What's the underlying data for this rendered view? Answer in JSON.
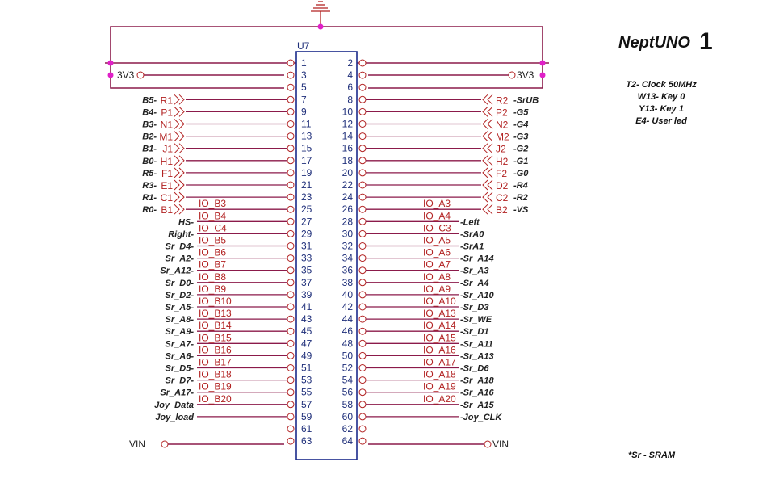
{
  "brand": {
    "name": "NeptUNO",
    "version": "1"
  },
  "notes": [
    "T2- Clock 50MHz",
    "W13- Key 0",
    "Y13- Key 1",
    "E4- User led"
  ],
  "footnote": "*Sr - SRAM",
  "component": {
    "ref": "U7"
  },
  "power": {
    "v33_left": "3V3",
    "v33_right": "3V3",
    "vin_left": "VIN",
    "vin_right": "VIN"
  },
  "pins": {
    "left": [
      "1",
      "3",
      "5",
      "7",
      "9",
      "11",
      "13",
      "15",
      "17",
      "19",
      "21",
      "23",
      "25",
      "27",
      "29",
      "31",
      "33",
      "35",
      "37",
      "39",
      "41",
      "43",
      "45",
      "47",
      "49",
      "51",
      "53",
      "55",
      "57",
      "59",
      "61",
      "63"
    ],
    "right": [
      "2",
      "4",
      "6",
      "8",
      "10",
      "12",
      "14",
      "16",
      "18",
      "20",
      "22",
      "24",
      "26",
      "28",
      "30",
      "32",
      "34",
      "36",
      "38",
      "40",
      "42",
      "44",
      "46",
      "48",
      "50",
      "52",
      "54",
      "56",
      "58",
      "60",
      "62",
      "64"
    ]
  },
  "left_fpga": [
    {
      "row": 3,
      "sig": "B5-",
      "pin": "R1"
    },
    {
      "row": 4,
      "sig": "B4-",
      "pin": "P1"
    },
    {
      "row": 5,
      "sig": "B3-",
      "pin": "N1"
    },
    {
      "row": 6,
      "sig": "B2-",
      "pin": "M1"
    },
    {
      "row": 7,
      "sig": "B1-",
      "pin": "J1"
    },
    {
      "row": 8,
      "sig": "B0-",
      "pin": "H1"
    },
    {
      "row": 9,
      "sig": "R5-",
      "pin": "F1"
    },
    {
      "row": 10,
      "sig": "R3-",
      "pin": "E1"
    },
    {
      "row": 11,
      "sig": "R1-",
      "pin": "C1"
    },
    {
      "row": 12,
      "sig": "R0-",
      "pin": "B1"
    }
  ],
  "right_fpga": [
    {
      "row": 3,
      "pin": "R2",
      "sig": "-SrUB"
    },
    {
      "row": 4,
      "pin": "P2",
      "sig": "-G5"
    },
    {
      "row": 5,
      "pin": "N2",
      "sig": "-G4"
    },
    {
      "row": 6,
      "pin": "M2",
      "sig": "-G3"
    },
    {
      "row": 7,
      "pin": "J2",
      "sig": "-G2"
    },
    {
      "row": 8,
      "pin": "H2",
      "sig": "-G1"
    },
    {
      "row": 9,
      "pin": "F2",
      "sig": "-G0"
    },
    {
      "row": 10,
      "pin": "D2",
      "sig": "-R4"
    },
    {
      "row": 11,
      "pin": "C2",
      "sig": "-R2"
    },
    {
      "row": 12,
      "pin": "B2",
      "sig": "-VS"
    }
  ],
  "left_io": [
    {
      "row": 12,
      "io": "IO_B3",
      "sig": ""
    },
    {
      "row": 13,
      "io": "IO_B4",
      "sig": "HS-"
    },
    {
      "row": 14,
      "io": "IO_C4",
      "sig": "Right-"
    },
    {
      "row": 15,
      "io": "IO_B5",
      "sig": "Sr_D4-"
    },
    {
      "row": 16,
      "io": "IO_B6",
      "sig": "Sr_A2-"
    },
    {
      "row": 17,
      "io": "IO_B7",
      "sig": "Sr_A12-"
    },
    {
      "row": 18,
      "io": "IO_B8",
      "sig": "Sr_D0-"
    },
    {
      "row": 19,
      "io": "IO_B9",
      "sig": "Sr_D2-"
    },
    {
      "row": 20,
      "io": "IO_B10",
      "sig": "Sr_A5-"
    },
    {
      "row": 21,
      "io": "IO_B13",
      "sig": "Sr_A8-"
    },
    {
      "row": 22,
      "io": "IO_B14",
      "sig": "Sr_A9-"
    },
    {
      "row": 23,
      "io": "IO_B15",
      "sig": "Sr_A7-"
    },
    {
      "row": 24,
      "io": "IO_B16",
      "sig": "Sr_A6-"
    },
    {
      "row": 25,
      "io": "IO_B17",
      "sig": "Sr_D5-"
    },
    {
      "row": 26,
      "io": "IO_B18",
      "sig": "Sr_D7-"
    },
    {
      "row": 27,
      "io": "IO_B19",
      "sig": "Sr_A17-"
    },
    {
      "row": 28,
      "io": "IO_B20",
      "sig": "Joy_Data"
    },
    {
      "row": 29,
      "io": "",
      "sig": "Joy_load"
    }
  ],
  "right_io": [
    {
      "row": 12,
      "io": "IO_A3",
      "sig": ""
    },
    {
      "row": 13,
      "io": "IO_A4",
      "sig": "-Left"
    },
    {
      "row": 14,
      "io": "IO_C3",
      "sig": "-SrA0"
    },
    {
      "row": 15,
      "io": "IO_A5",
      "sig": "-SrA1"
    },
    {
      "row": 16,
      "io": "IO_A6",
      "sig": "-Sr_A14"
    },
    {
      "row": 17,
      "io": "IO_A7",
      "sig": "-Sr_A3"
    },
    {
      "row": 18,
      "io": "IO_A8",
      "sig": "-Sr_A4"
    },
    {
      "row": 19,
      "io": "IO_A9",
      "sig": "-Sr_A10"
    },
    {
      "row": 20,
      "io": "IO_A10",
      "sig": "-Sr_D3"
    },
    {
      "row": 21,
      "io": "IO_A13",
      "sig": "-Sr_WE"
    },
    {
      "row": 22,
      "io": "IO_A14",
      "sig": "-Sr_D1"
    },
    {
      "row": 23,
      "io": "IO_A15",
      "sig": "-Sr_A11"
    },
    {
      "row": 24,
      "io": "IO_A16",
      "sig": "-Sr_A13"
    },
    {
      "row": 25,
      "io": "IO_A17",
      "sig": "-Sr_D6"
    },
    {
      "row": 26,
      "io": "IO_A18",
      "sig": "-Sr_A18"
    },
    {
      "row": 27,
      "io": "IO_A19",
      "sig": "-Sr_A16"
    },
    {
      "row": 28,
      "io": "IO_A20",
      "sig": "-Sr_A15"
    },
    {
      "row": 29,
      "io": "",
      "sig": "-Joy_CLK"
    }
  ]
}
